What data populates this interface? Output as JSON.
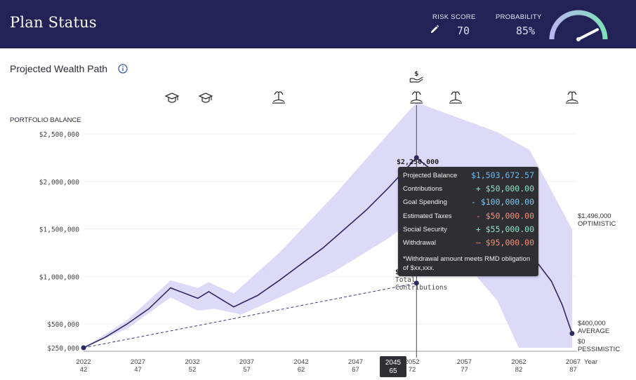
{
  "header": {
    "title": "Plan Status",
    "risk_label": "RISK SCORE",
    "risk_value": "70",
    "prob_label": "PROBABILITY",
    "prob_value": "85%",
    "gauge_fraction": 0.85,
    "colors": {
      "bar": "#232257",
      "gauge_start": "#b9b6f0",
      "gauge_end": "#7fe0b8"
    }
  },
  "section": {
    "title": "Projected Wealth Path"
  },
  "chart_data": {
    "type": "area",
    "title": "",
    "ylabel": "PORTFOLIO BALANCE",
    "xlabel": "Year",
    "ylim": [
      250000,
      2500000
    ],
    "y_ticks": [
      {
        "value": 2500000,
        "label": "$2,500,000"
      },
      {
        "value": 2000000,
        "label": "$2,000,000"
      },
      {
        "value": 1500000,
        "label": "$1,500,000"
      },
      {
        "value": 1000000,
        "label": "$1,000,000"
      },
      {
        "value": 500000,
        "label": "$500,000"
      },
      {
        "value": 250000,
        "label": "$250,000"
      }
    ],
    "x_ticks": [
      {
        "year": 2022,
        "age": "42"
      },
      {
        "year": 2027,
        "age": "47"
      },
      {
        "year": 2032,
        "age": "52"
      },
      {
        "year": 2037,
        "age": "57"
      },
      {
        "year": 2042,
        "age": "62"
      },
      {
        "year": 2047,
        "age": "67"
      },
      {
        "year": 2052,
        "age": "72"
      },
      {
        "year": 2057,
        "age": "77"
      },
      {
        "year": 2062,
        "age": "82"
      },
      {
        "year": 2067,
        "age": "87"
      }
    ],
    "selected": {
      "year": "2045",
      "age": "65"
    },
    "average_path": [
      {
        "x": 2022,
        "y": 250000
      },
      {
        "x": 2024,
        "y": 360000
      },
      {
        "x": 2026,
        "y": 500000
      },
      {
        "x": 2028,
        "y": 660000
      },
      {
        "x": 2030,
        "y": 880000
      },
      {
        "x": 2032.5,
        "y": 770000
      },
      {
        "x": 2033.5,
        "y": 840000
      },
      {
        "x": 2035.8,
        "y": 680000
      },
      {
        "x": 2038,
        "y": 800000
      },
      {
        "x": 2040,
        "y": 960000
      },
      {
        "x": 2042,
        "y": 1130000
      },
      {
        "x": 2044,
        "y": 1300000
      },
      {
        "x": 2046,
        "y": 1500000
      },
      {
        "x": 2048,
        "y": 1700000
      },
      {
        "x": 2050,
        "y": 1930000
      },
      {
        "x": 2052.6,
        "y": 2250000
      },
      {
        "x": 2054,
        "y": 2120000
      },
      {
        "x": 2057,
        "y": 1840000
      },
      {
        "x": 2060,
        "y": 1580000
      },
      {
        "x": 2063,
        "y": 1250000
      },
      {
        "x": 2065,
        "y": 950000
      },
      {
        "x": 2066,
        "y": 700000
      },
      {
        "x": 2066.5,
        "y": 530000
      },
      {
        "x": 2066.9,
        "y": 400000
      }
    ],
    "band_upper": [
      {
        "x": 2022,
        "y": 250000
      },
      {
        "x": 2026,
        "y": 540000
      },
      {
        "x": 2030,
        "y": 960000
      },
      {
        "x": 2032.5,
        "y": 880000
      },
      {
        "x": 2033.5,
        "y": 940000
      },
      {
        "x": 2035.8,
        "y": 820000
      },
      {
        "x": 2040,
        "y": 1250000
      },
      {
        "x": 2045,
        "y": 1850000
      },
      {
        "x": 2050,
        "y": 2500000
      },
      {
        "x": 2052.6,
        "y": 2830000
      },
      {
        "x": 2055,
        "y": 2730000
      },
      {
        "x": 2060,
        "y": 2520000
      },
      {
        "x": 2063,
        "y": 2330000
      },
      {
        "x": 2066.9,
        "y": 1496000
      }
    ],
    "band_lower": [
      {
        "x": 2066.9,
        "y": 250000
      },
      {
        "x": 2062,
        "y": 250000
      },
      {
        "x": 2060,
        "y": 750000
      },
      {
        "x": 2057,
        "y": 1150000
      },
      {
        "x": 2054,
        "y": 1460000
      },
      {
        "x": 2052.6,
        "y": 1620000
      },
      {
        "x": 2050,
        "y": 1400000
      },
      {
        "x": 2045,
        "y": 1050000
      },
      {
        "x": 2040,
        "y": 780000
      },
      {
        "x": 2036.5,
        "y": 600000
      },
      {
        "x": 2034,
        "y": 660000
      },
      {
        "x": 2032.5,
        "y": 640000
      },
      {
        "x": 2030,
        "y": 780000
      },
      {
        "x": 2026,
        "y": 450000
      },
      {
        "x": 2022,
        "y": 250000
      }
    ],
    "contributions_line": [
      {
        "x": 2022,
        "y": 250000
      },
      {
        "x": 2052.6,
        "y": 930000
      }
    ],
    "annotations": {
      "peak": "$2,250,000",
      "contrib_value": "$",
      "contrib_label_1": "Total",
      "contrib_label_2": "Contributions",
      "optimistic_value": "$1,496,000",
      "optimistic_label": "OPTIMISTIC",
      "average_value": "$400,000",
      "average_label": "AVERAGE",
      "pessimistic_value": "$0",
      "pessimistic_label": "PESSIMISTIC"
    },
    "events": [
      {
        "year": 2030,
        "icon": "graduation-cap-icon"
      },
      {
        "year": 2033,
        "icon": "graduation-cap-icon"
      },
      {
        "year": 2040,
        "icon": "island-icon"
      },
      {
        "year": 2052.6,
        "icon": "island-icon"
      },
      {
        "year": 2052.6,
        "icon": "money-hand-icon"
      },
      {
        "year": 2058,
        "icon": "island-icon"
      },
      {
        "year": 2067,
        "icon": "island-icon"
      }
    ],
    "colors": {
      "band": "#dcdaf6",
      "line": "#2b2a63",
      "axis": "#555555"
    }
  },
  "tooltip": {
    "rows": [
      {
        "label": "Projected Balance",
        "value": "$1,503,672.57",
        "tone": "blue"
      },
      {
        "label": "Contributions",
        "value": "+ $50,000.00",
        "tone": "plus"
      },
      {
        "label": "Goal Spending",
        "value": "- $100,000.00",
        "tone": "minus-b"
      },
      {
        "label": "Estimated Taxes",
        "value": "- $50,000.00",
        "tone": "minus-r"
      },
      {
        "label": "Social Security",
        "value": "+ $55,000.00",
        "tone": "plus"
      },
      {
        "label": "Withdrawal",
        "value": "– $95,000.00",
        "tone": "minus-r"
      }
    ],
    "note": "*Withdrawal amount meets RMD obligation of $xx,xxx."
  }
}
